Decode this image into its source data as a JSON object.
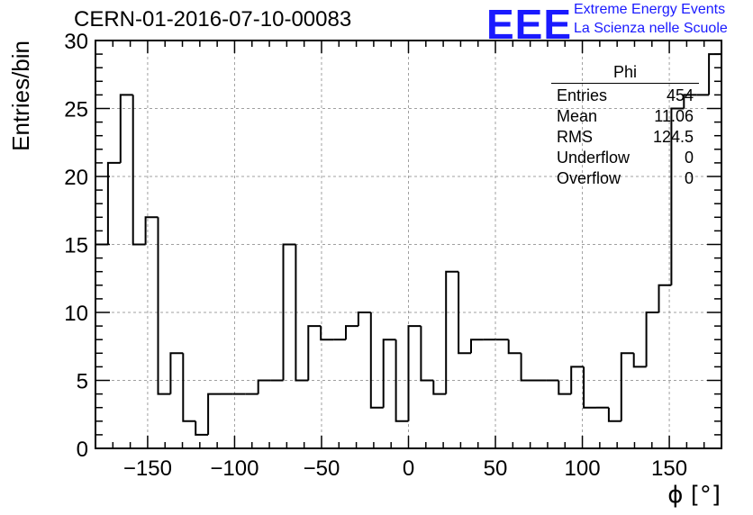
{
  "header": {
    "run_title": "CERN-01-2016-07-10-00083",
    "logo_text": "EEE",
    "logo_line1": "Extreme Energy Events",
    "logo_line2": "La Scienza nelle Scuole"
  },
  "stats_box": {
    "name": "Phi",
    "rows": [
      {
        "label": "Entries",
        "value": "454"
      },
      {
        "label": "Mean",
        "value": "11.06"
      },
      {
        "label": "RMS",
        "value": "124.5"
      },
      {
        "label": "Underflow",
        "value": "0"
      },
      {
        "label": "Overflow",
        "value": "0"
      }
    ]
  },
  "chart_data": {
    "type": "bar",
    "title": "CERN-01-2016-07-10-00083",
    "xlabel": "ϕ [°]",
    "ylabel": "Entries/bin",
    "xlim": [
      -180,
      180
    ],
    "ylim": [
      0,
      30
    ],
    "grid": true,
    "x_ticks": [
      -150,
      -100,
      -50,
      0,
      50,
      100,
      150
    ],
    "x_tick_labels": [
      "−150",
      "−100",
      "−50",
      "0",
      "50",
      "100",
      "150"
    ],
    "y_ticks": [
      0,
      5,
      10,
      15,
      20,
      25,
      30
    ],
    "y_tick_labels": [
      "0",
      "5",
      "10",
      "15",
      "20",
      "25",
      "30"
    ],
    "bin_width": 7.2,
    "bin_edges_start": -180,
    "values": [
      15,
      21,
      26,
      15,
      17,
      4,
      7,
      2,
      1,
      4,
      4,
      4,
      4,
      5,
      5,
      15,
      5,
      9,
      8,
      8,
      9,
      10,
      3,
      8,
      2,
      9,
      5,
      4,
      13,
      7,
      8,
      8,
      8,
      7,
      5,
      5,
      5,
      4,
      6,
      3,
      3,
      2,
      7,
      6,
      10,
      12,
      25,
      26,
      26,
      29
    ]
  },
  "colors": {
    "line": "#000000",
    "grid": "#a0a0a0",
    "logo": "#1a1aff"
  }
}
